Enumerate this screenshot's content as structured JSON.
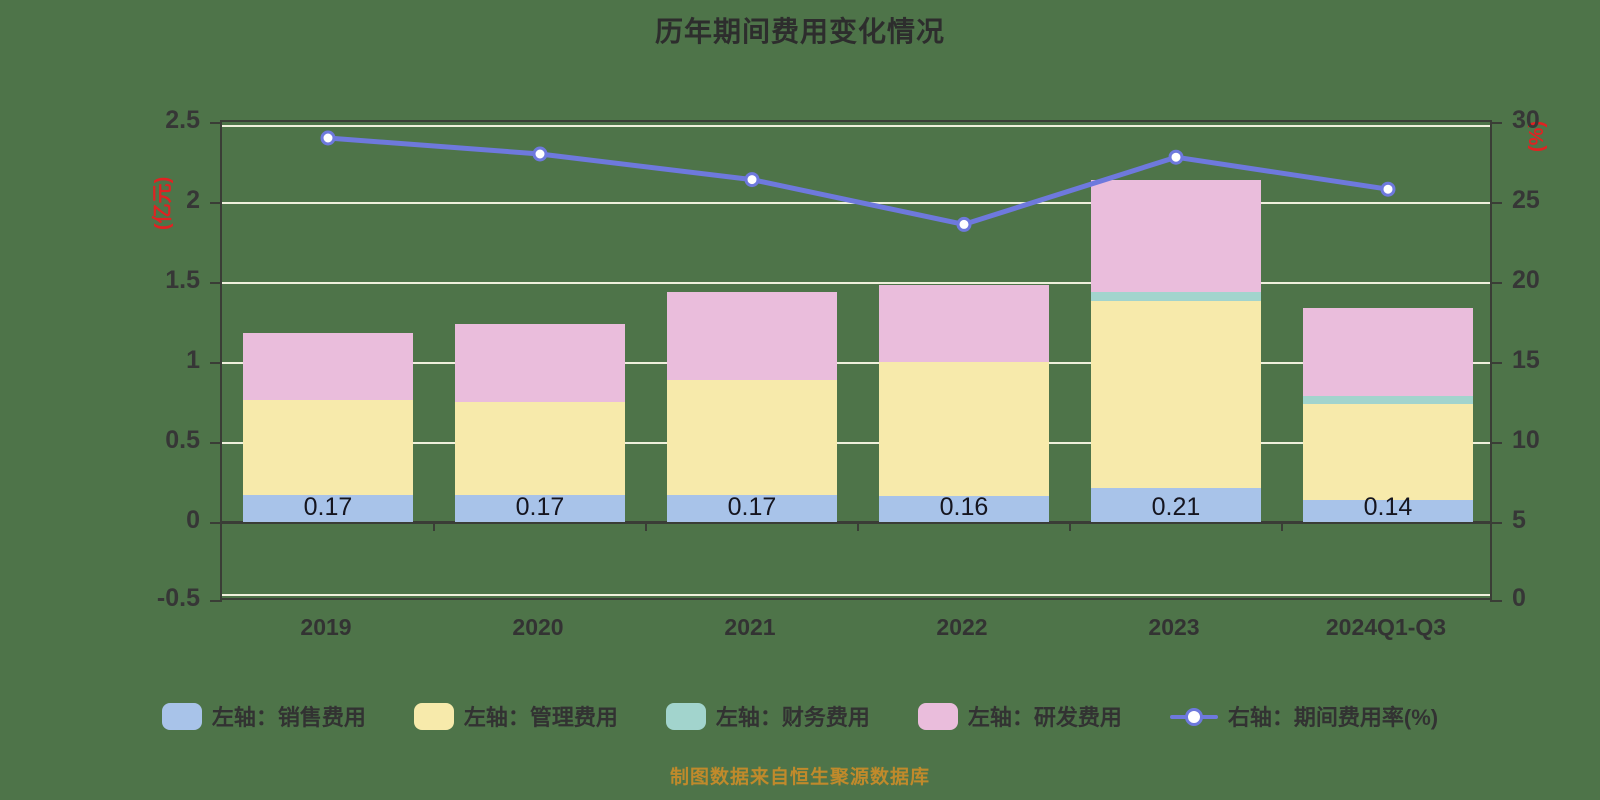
{
  "title": "历年期间费用变化情况",
  "caption": "制图数据来自恒生聚源数据库",
  "colors": {
    "background": "#4e7449",
    "sales_bar": "#a8c3e9",
    "management_bar": "#f7eaab",
    "finance_bar": "#a2d4cd",
    "rd_bar": "#eabddc",
    "rate_line": "#6e79dd",
    "marker_fill": "#ffffff",
    "gridline": "#eff0dc",
    "axis_spine": "#3a3d36",
    "axis_unit_text": "#e02222",
    "caption_text": "#c08a2b",
    "title_text": "#2d2d2d"
  },
  "chart_data": {
    "type": "bar",
    "subtype": "stacked-bar-with-line-dual-axis",
    "title": "历年期间费用变化情况",
    "categories": [
      "2019",
      "2020",
      "2021",
      "2022",
      "2023",
      "2024Q1-Q3"
    ],
    "bar_series": [
      {
        "name": "左轴：销售费用",
        "color": "#a8c3e9",
        "values": [
          0.17,
          0.17,
          0.17,
          0.16,
          0.21,
          0.14
        ]
      },
      {
        "name": "左轴：管理费用",
        "color": "#f7eaab",
        "values": [
          0.59,
          0.58,
          0.72,
          0.84,
          1.17,
          0.6
        ]
      },
      {
        "name": "左轴：财务费用",
        "color": "#a2d4cd",
        "values": [
          0,
          0,
          0,
          0,
          0.06,
          0.05
        ]
      },
      {
        "name": "左轴：研发费用",
        "color": "#eabddc",
        "values": [
          0.42,
          0.49,
          0.55,
          0.48,
          0.7,
          0.55
        ]
      }
    ],
    "line_series": {
      "name": "右轴：期间费用率(%)",
      "color": "#6e79dd",
      "values": [
        29.0,
        28.0,
        26.4,
        23.6,
        27.8,
        25.8
      ]
    },
    "bar_labels": [
      "0.17",
      "0.17",
      "0.17",
      "0.16",
      "0.21",
      "0.14"
    ],
    "bar_totals": [
      1.18,
      1.24,
      1.44,
      1.48,
      2.14,
      1.34
    ],
    "left_axis": {
      "unit": "(亿元)",
      "min": -0.5,
      "max": 2.5,
      "tick_labels": [
        "2.5",
        "2",
        "1.5",
        "1",
        "0.5",
        "0",
        "-0.5"
      ],
      "tick_values": [
        2.5,
        2,
        1.5,
        1,
        0.5,
        0,
        -0.5
      ]
    },
    "right_axis": {
      "unit": "(%)",
      "min": 0,
      "max": 30,
      "tick_labels": [
        "30",
        "25",
        "20",
        "15",
        "10",
        "5",
        "0"
      ],
      "tick_values": [
        30,
        25,
        20,
        15,
        10,
        5,
        0
      ]
    },
    "grid": true,
    "legend_position": "bottom"
  },
  "legend": {
    "items": [
      {
        "label": "左轴：销售费用",
        "marker": "swatch",
        "color": "#a8c3e9"
      },
      {
        "label": "左轴：管理费用",
        "marker": "swatch",
        "color": "#f7eaab"
      },
      {
        "label": "左轴：财务费用",
        "marker": "swatch",
        "color": "#a2d4cd"
      },
      {
        "label": "左轴：研发费用",
        "marker": "swatch",
        "color": "#eabddc"
      },
      {
        "label": "右轴：期间费用率(%)",
        "marker": "line-circle",
        "color": "#6e79dd"
      }
    ]
  }
}
